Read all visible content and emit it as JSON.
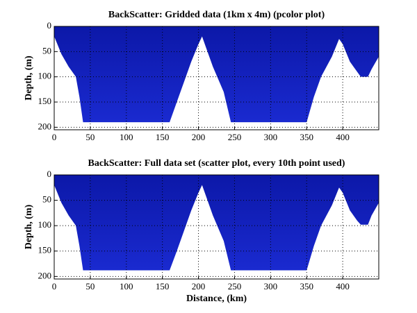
{
  "chart_data": [
    {
      "type": "area",
      "title": "BackScatter: Gridded data (1km x 4m) (pcolor plot)",
      "ylabel": "Depth, (m)",
      "x": [
        0,
        10,
        20,
        30,
        35,
        40,
        160,
        170,
        180,
        190,
        200,
        205,
        210,
        220,
        235,
        245,
        350,
        360,
        370,
        385,
        395,
        400,
        410,
        420,
        425,
        435,
        440,
        450
      ],
      "values": [
        20,
        55,
        80,
        100,
        140,
        190,
        190,
        150,
        110,
        70,
        35,
        20,
        40,
        80,
        130,
        190,
        190,
        140,
        100,
        60,
        25,
        35,
        70,
        90,
        100,
        100,
        85,
        60
      ],
      "color": "#0c18a8",
      "xlim": [
        0,
        450
      ],
      "ylim": [
        0,
        205
      ],
      "xticks": [
        0,
        50,
        100,
        150,
        200,
        250,
        300,
        350,
        400
      ],
      "yticks": [
        0,
        50,
        100,
        150,
        200
      ],
      "grid": true
    },
    {
      "type": "area",
      "title": "BackScatter: Full data set (scatter plot, every 10th point used)",
      "ylabel": "Depth, (m)",
      "xlabel": "Distance, (km)",
      "x": [
        0,
        10,
        20,
        30,
        35,
        40,
        160,
        170,
        180,
        190,
        200,
        205,
        210,
        220,
        235,
        245,
        350,
        360,
        370,
        385,
        395,
        400,
        410,
        420,
        425,
        435,
        440,
        450
      ],
      "values": [
        20,
        55,
        80,
        100,
        140,
        188,
        188,
        150,
        110,
        70,
        35,
        20,
        40,
        80,
        130,
        188,
        188,
        140,
        100,
        60,
        25,
        35,
        70,
        90,
        98,
        98,
        80,
        55
      ],
      "color": "#0c18a8",
      "xlim": [
        0,
        450
      ],
      "ylim": [
        0,
        205
      ],
      "xticks": [
        0,
        50,
        100,
        150,
        200,
        250,
        300,
        350,
        400
      ],
      "yticks": [
        0,
        50,
        100,
        150,
        200
      ],
      "grid": true
    }
  ]
}
